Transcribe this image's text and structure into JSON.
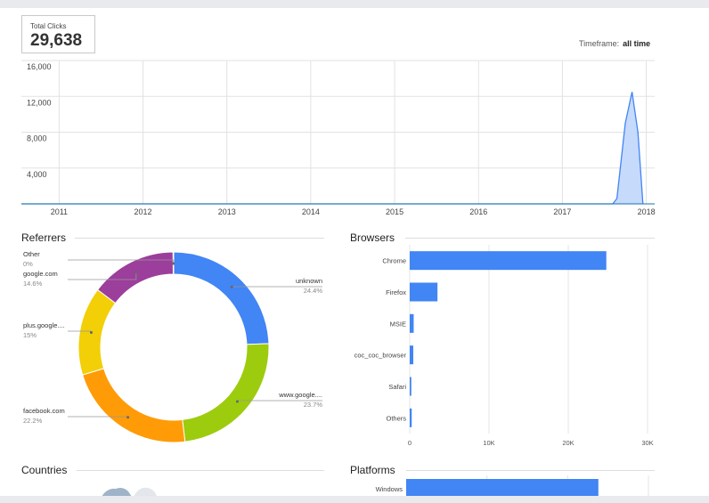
{
  "summary": {
    "total_label": "Total Clicks",
    "total_value": "29,638"
  },
  "timeframe": {
    "label": "Timeframe:",
    "value": "all time"
  },
  "sections": {
    "referrers": "Referrers",
    "browsers": "Browsers",
    "countries": "Countries",
    "platforms": "Platforms"
  },
  "colors": {
    "blue": "#4285f4",
    "area_fill": "#c6dafc",
    "green": "#9ccc0d",
    "orange": "#ff9b06",
    "yellow": "#f2cf06",
    "purple": "#9c3e9b"
  },
  "chart_data": [
    {
      "type": "area",
      "title": "",
      "x_ticks": [
        "2011",
        "2012",
        "2013",
        "2014",
        "2015",
        "2016",
        "2017",
        "2018"
      ],
      "y_ticks": [
        "4,000",
        "8,000",
        "12,000",
        "16,000"
      ],
      "ylim": [
        0,
        16000
      ],
      "xlim": [
        2010.55,
        2018.1
      ],
      "grid": true,
      "series": [
        {
          "x": [
            2010.55,
            2017.6,
            2017.65,
            2017.75,
            2017.83,
            2017.9,
            2017.96
          ],
          "y": [
            0,
            0,
            600,
            9000,
            12500,
            8000,
            0
          ]
        }
      ]
    },
    {
      "type": "pie",
      "donut": true,
      "slices": [
        {
          "label": "unknown",
          "pct_label": "24.4%",
          "value": 24.4,
          "color": "#4285f4"
        },
        {
          "label": "www.google....",
          "pct_label": "23.7%",
          "value": 23.7,
          "color": "#9ccc0d"
        },
        {
          "label": "facebook.com",
          "pct_label": "22.2%",
          "value": 22.2,
          "color": "#ff9b06"
        },
        {
          "label": "plus.google....",
          "pct_label": "15%",
          "value": 15.0,
          "color": "#f2cf06"
        },
        {
          "label": "google.com",
          "pct_label": "14.6%",
          "value": 14.6,
          "color": "#9c3e9b"
        },
        {
          "label": "Other",
          "pct_label": "0%",
          "value": 0.1,
          "color": "#888888"
        }
      ]
    },
    {
      "type": "bar",
      "orientation": "horizontal",
      "categories": [
        "Chrome",
        "Firefox",
        "MSIE",
        "coc_coc_browser",
        "Safari",
        "Others"
      ],
      "values": [
        24800,
        3500,
        500,
        450,
        200,
        250
      ],
      "xlim": [
        0,
        30000
      ],
      "x_ticks": [
        "0",
        "10K",
        "20K",
        "30K"
      ],
      "color": "#4285f4"
    },
    {
      "type": "bar",
      "orientation": "horizontal",
      "categories": [
        "Windows"
      ],
      "values": [
        23800
      ],
      "xlim": [
        0,
        30000
      ],
      "color": "#4285f4"
    }
  ]
}
